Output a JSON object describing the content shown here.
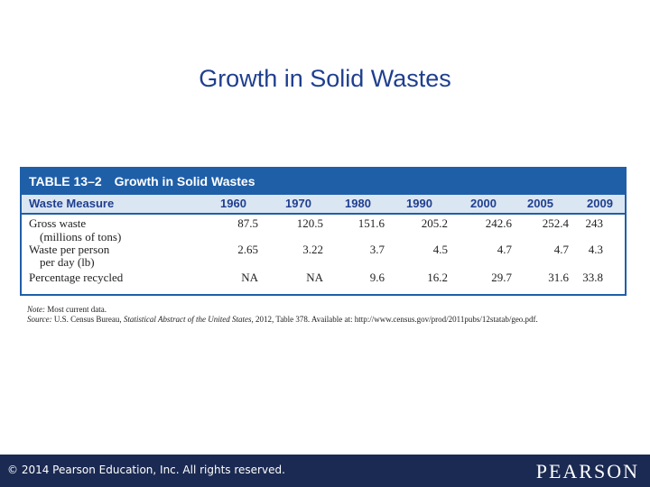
{
  "slide": {
    "title": "Growth in Solid Wastes"
  },
  "table": {
    "number": "TABLE 13–2",
    "title": "Growth in Solid Wastes",
    "header_label": "Waste Measure",
    "years": [
      "1960",
      "1970",
      "1980",
      "1990",
      "2000",
      "2005",
      "2009"
    ],
    "rows": [
      {
        "label_line1": "Gross waste",
        "label_line2": "(millions of tons)",
        "values": [
          "87.5",
          "120.5",
          "151.6",
          "205.2",
          "242.6",
          "252.4",
          "243"
        ]
      },
      {
        "label_line1": "Waste per person",
        "label_line2": "per day (lb)",
        "values": [
          "2.65",
          "3.22",
          "3.7",
          "4.5",
          "4.7",
          "4.7",
          "4.3"
        ]
      },
      {
        "label_line1": "Percentage recycled",
        "label_line2": "",
        "values": [
          "NA",
          "NA",
          "9.6",
          "16.2",
          "29.7",
          "31.6",
          "33.8"
        ]
      }
    ],
    "note_label": "Note:",
    "note_text": "Most current data.",
    "source_label": "Source:",
    "source_text_before": "U.S. Census Bureau,",
    "source_italic": "Statistical Abstract of the United States",
    "source_text_after": ", 2012, Table 378. Available at: http://www.census.gov/prod/2011pubs/12statab/geo.pdf."
  },
  "footer": {
    "copyright": "© 2014  Pearson Education, Inc. All rights reserved.",
    "logo": "PEARSON"
  },
  "colors": {
    "table_accent": "#1f5fa8",
    "footer_bg": "#1b2a52",
    "title": "#1f3f8f"
  }
}
